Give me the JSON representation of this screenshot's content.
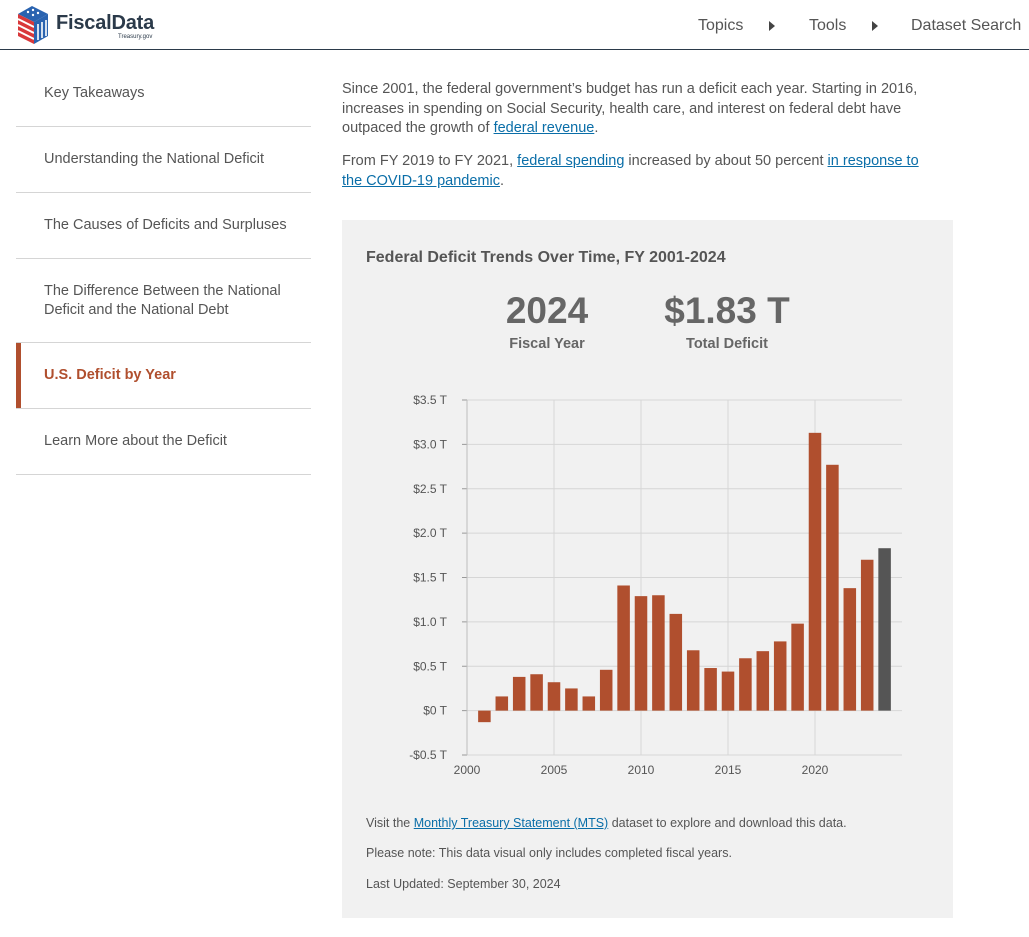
{
  "header": {
    "logo_text": "FiscalData",
    "logo_sub": "Treasury.gov",
    "nav": [
      {
        "label": "Topics"
      },
      {
        "label": "Tools"
      },
      {
        "label": "Dataset Search"
      }
    ]
  },
  "sidebar": {
    "items": [
      {
        "label": "Key Takeaways"
      },
      {
        "label": "Understanding the National Deficit"
      },
      {
        "label": "The Causes of Deficits and Surpluses"
      },
      {
        "label": "The Difference Between the National Deficit and the National Debt"
      },
      {
        "label": "U.S. Deficit by Year",
        "active": true
      },
      {
        "label": "Learn More about the Deficit"
      }
    ]
  },
  "intro": {
    "p1_text": "Since 2001, the federal government’s budget has run a deficit each year. Starting in 2016, increases in spending on Social Security, health care, and interest on federal debt have outpaced the growth of ",
    "p1_link": "federal revenue",
    "p1_end": ".",
    "p2_text": "From FY 2019 to FY 2021, ",
    "p2_link1": "federal spending",
    "p2_mid": " increased by about 50 percent ",
    "p2_link2": "in response to the COVID-19 pandemic",
    "p2_end": "."
  },
  "card": {
    "title": "Federal Deficit Trends Over Time, FY 2001-2024",
    "stat_year_value": "2024",
    "stat_year_label": "Fiscal Year",
    "stat_deficit_value": "$1.83 T",
    "stat_deficit_label": "Total Deficit",
    "note_visit_pre": "Visit the ",
    "note_visit_link": "Monthly Treasury Statement (MTS)",
    "note_visit_post": " dataset to explore and download this data.",
    "note_please": "Please note: This data visual only includes completed fiscal years.",
    "note_updated": "Last Updated: September 30, 2024"
  },
  "colors": {
    "bar": "#b04f2e",
    "bar_highlight": "#555555",
    "accent": "#b04f2e",
    "link": "#0a6ea8"
  },
  "chart_data": {
    "type": "bar",
    "title": "Federal Deficit Trends Over Time, FY 2001-2024",
    "x": [
      2001,
      2002,
      2003,
      2004,
      2005,
      2006,
      2007,
      2008,
      2009,
      2010,
      2011,
      2012,
      2013,
      2014,
      2015,
      2016,
      2017,
      2018,
      2019,
      2020,
      2021,
      2022,
      2023,
      2024
    ],
    "values": [
      -0.13,
      0.16,
      0.38,
      0.41,
      0.32,
      0.25,
      0.16,
      0.46,
      1.41,
      1.29,
      1.3,
      1.09,
      0.68,
      0.48,
      0.44,
      0.59,
      0.67,
      0.78,
      0.98,
      3.13,
      2.77,
      1.38,
      1.7,
      1.83
    ],
    "highlight_year": 2024,
    "ylim": [
      -0.5,
      3.5
    ],
    "yticks": [
      -0.5,
      0,
      0.5,
      1.0,
      1.5,
      2.0,
      2.5,
      3.0,
      3.5
    ],
    "ytick_labels": [
      "-$0.5 T",
      "$0 T",
      "$0.5 T",
      "$1.0 T",
      "$1.5 T",
      "$2.0 T",
      "$2.5 T",
      "$3.0 T",
      "$3.5 T"
    ],
    "xticks": [
      2000,
      2005,
      2010,
      2015,
      2020
    ],
    "xlim": [
      2000,
      2025
    ],
    "grid": true
  }
}
